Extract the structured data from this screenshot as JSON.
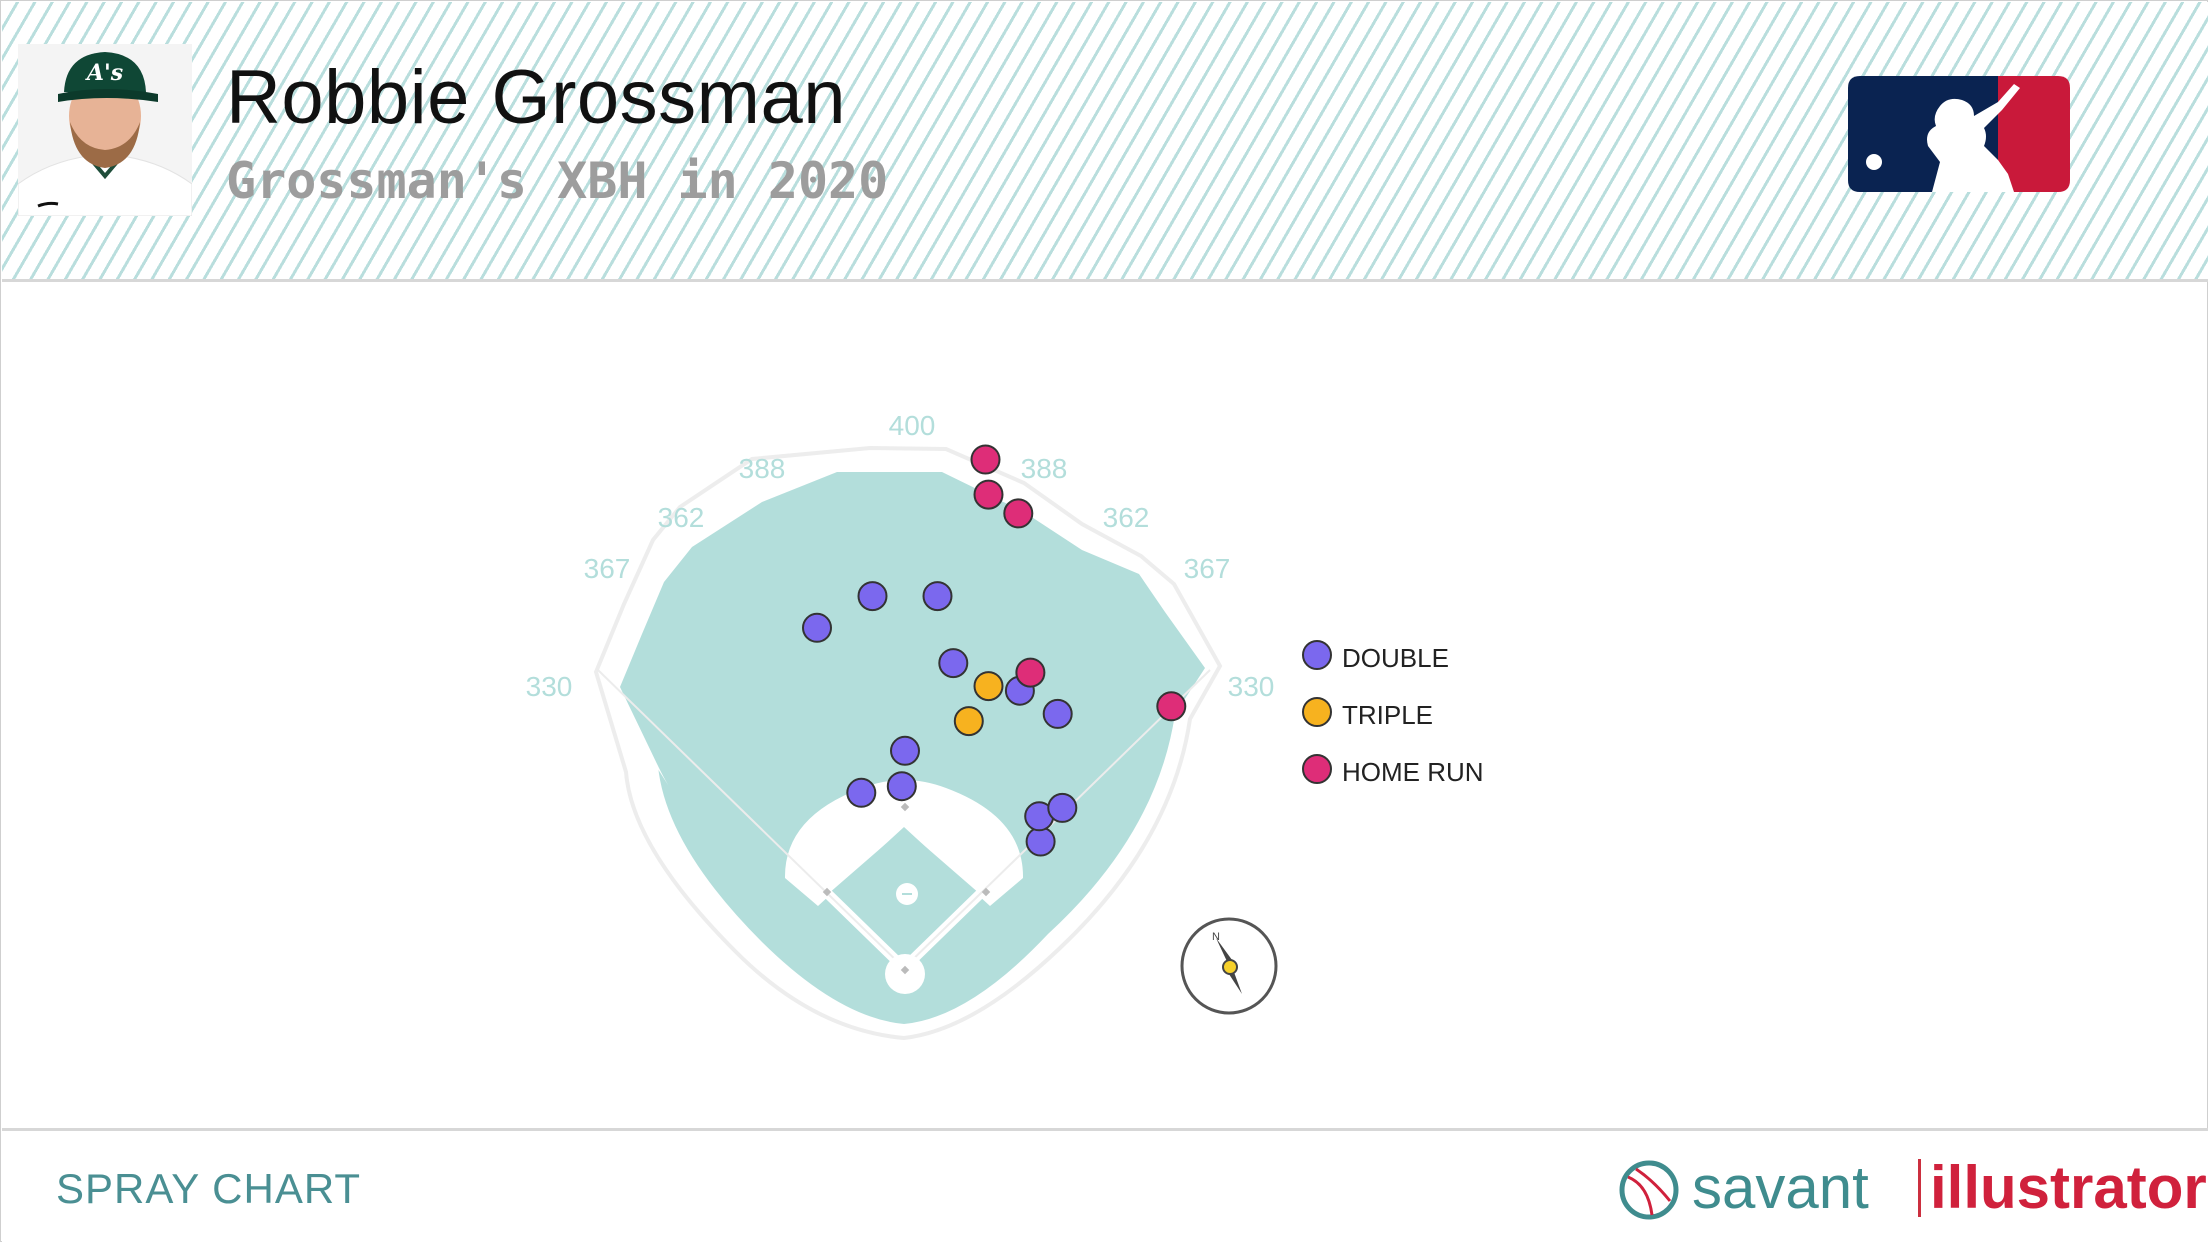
{
  "header": {
    "player_name": "Robbie Grossman",
    "subtitle": "Grossman's XBH in 2020"
  },
  "footer": {
    "title": "SPRAY CHART",
    "brand_left": "savant",
    "brand_right": "illustrator"
  },
  "colors": {
    "field": "#b3dedb",
    "double": "#7b68ee",
    "triple": "#f7b21f",
    "home_run": "#de2d78",
    "mlb_blue": "#0a2351",
    "mlb_red": "#c9193a",
    "distance_label": "#b3dedb"
  },
  "chart_data": {
    "type": "scatter",
    "title": "Grossman's XBH in 2020",
    "legend_position": "top-right",
    "distance_labels": [
      "330",
      "367",
      "362",
      "388",
      "400",
      "388",
      "362",
      "367",
      "330"
    ],
    "series": [
      {
        "name": "DOUBLE",
        "color": "#7b68ee",
        "points": [
          {
            "x": 62,
            "y": 148
          },
          {
            "x": 90,
            "y": 178
          },
          {
            "x": 88,
            "y": 149
          },
          {
            "x": 184,
            "y": 152
          },
          {
            "x": 173,
            "y": 166
          },
          {
            "x": 179,
            "y": 184
          },
          {
            "x": 152,
            "y": 243
          },
          {
            "x": 135,
            "y": 246
          },
          {
            "x": 108,
            "y": 253
          },
          {
            "x": 100,
            "y": 306
          },
          {
            "x": 61,
            "y": 288
          },
          {
            "x": 80,
            "y": 306
          }
        ]
      },
      {
        "name": "TRIPLE",
        "color": "#f7b21f",
        "points": [
          {
            "x": 123,
            "y": 241
          },
          {
            "x": 119,
            "y": 209
          }
        ]
      },
      {
        "name": "HOME RUN",
        "color": "#de2d78",
        "points": [
          {
            "x": 181,
            "y": 306
          },
          {
            "x": 136,
            "y": 263
          },
          {
            "x": 118,
            "y": 384
          },
          {
            "x": 110,
            "y": 394
          },
          {
            "x": 108,
            "y": 422
          }
        ]
      }
    ]
  }
}
